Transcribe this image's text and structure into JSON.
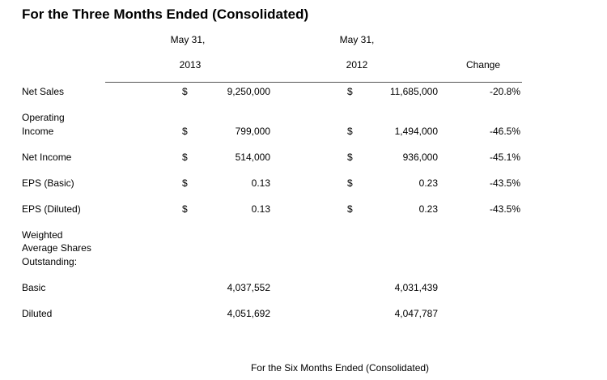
{
  "title": "For the Three Months Ended (Consolidated)",
  "columns": [
    {
      "line1": "May 31,",
      "line2": "2013"
    },
    {
      "line1": "May 31,",
      "line2": "2012"
    },
    {
      "line1": "",
      "line2": "Change"
    }
  ],
  "rows": [
    {
      "label1": "Net Sales",
      "label2": "",
      "cur1": "$",
      "v1": "9,250,000",
      "cur2": "$",
      "v2": "11,685,000",
      "change": "-20.8%"
    },
    {
      "label1": "Operating",
      "label2": "Income",
      "cur1": "$",
      "v1": "799,000",
      "cur2": "$",
      "v2": "1,494,000",
      "change": "-46.5%"
    },
    {
      "label1": "Net Income",
      "label2": "",
      "cur1": "$",
      "v1": "514,000",
      "cur2": "$",
      "v2": "936,000",
      "change": "-45.1%"
    },
    {
      "label1": "EPS (Basic)",
      "label2": "",
      "cur1": "$",
      "v1": "0.13",
      "cur2": "$",
      "v2": "0.23",
      "change": "-43.5%"
    },
    {
      "label1": "EPS (Diluted)",
      "label2": "",
      "cur1": "$",
      "v1": "0.13",
      "cur2": "$",
      "v2": "0.23",
      "change": "-43.5%"
    }
  ],
  "shares_heading": [
    "Weighted",
    "Average Shares",
    "Outstanding:"
  ],
  "shares": [
    {
      "label": "Basic",
      "v1": "4,037,552",
      "v2": "4,031,439"
    },
    {
      "label": "Diluted",
      "v1": "4,051,692",
      "v2": "4,047,787"
    }
  ],
  "footer": "For the Six Months Ended (Consolidated)"
}
